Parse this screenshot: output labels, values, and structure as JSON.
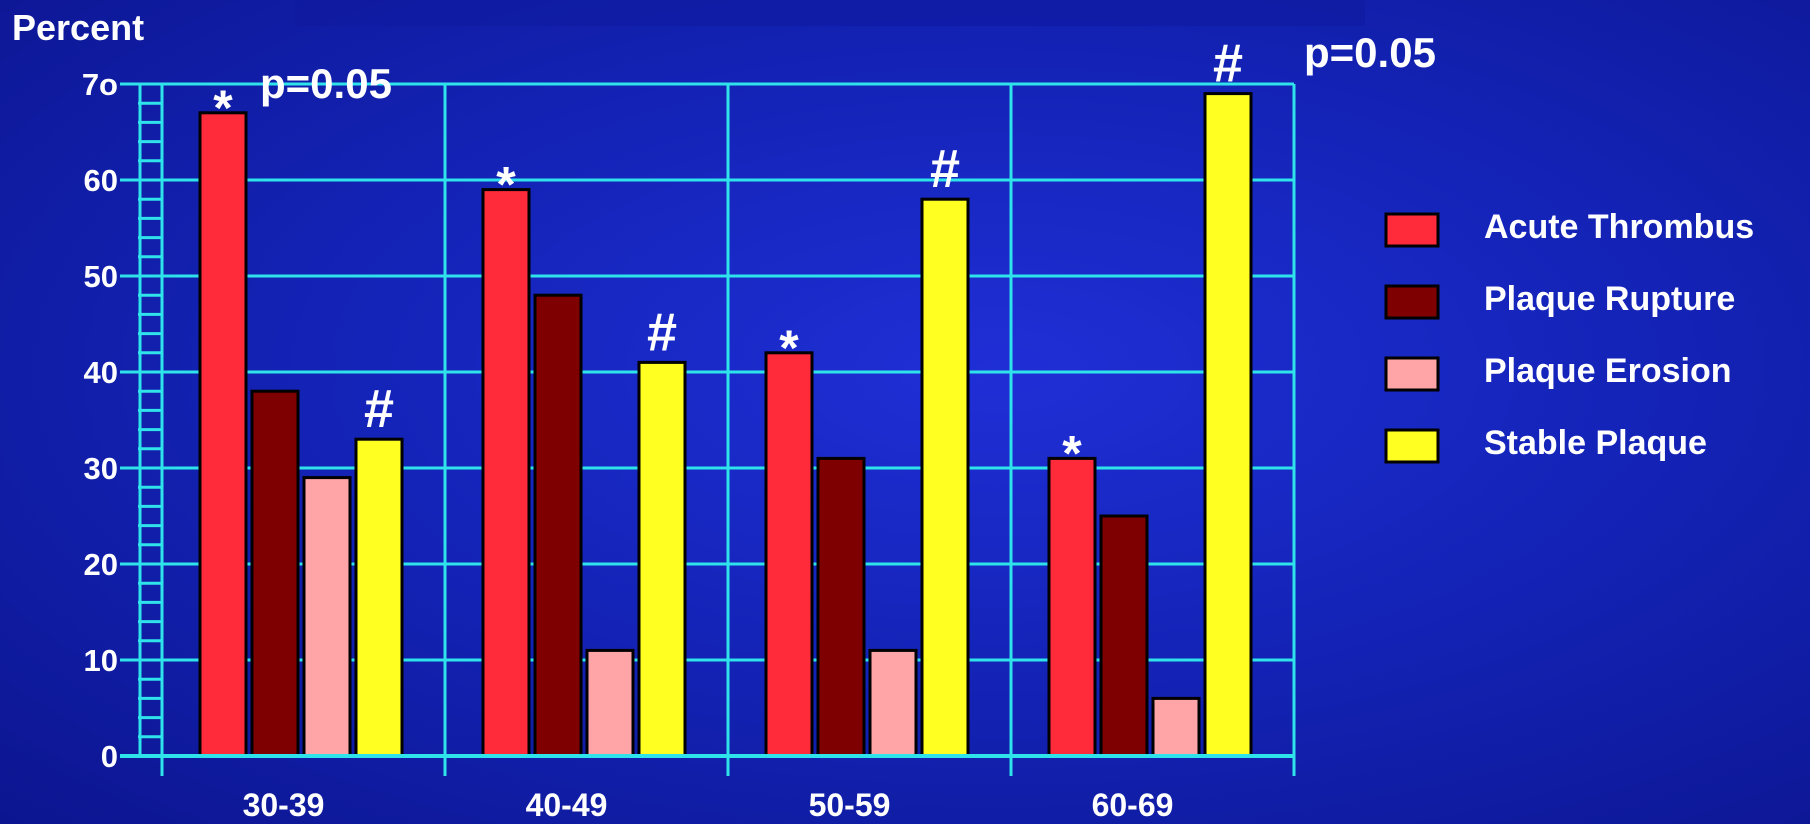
{
  "chart_data": {
    "type": "bar",
    "ylabel": "Percent",
    "y_tick_labels": [
      "0",
      "10",
      "20",
      "30",
      "40",
      "50",
      "60",
      "7o"
    ],
    "y_tick_values": [
      0,
      10,
      20,
      30,
      40,
      50,
      60,
      70
    ],
    "ylim": [
      0,
      70
    ],
    "grid": true,
    "categories": [
      "30-39",
      "40-49",
      "50-59",
      "60-69"
    ],
    "series": [
      {
        "name": "Acute Thrombus",
        "color": "#ff2b3a",
        "values": [
          67,
          59,
          42,
          31
        ]
      },
      {
        "name": "Plaque Rupture",
        "color": "#7f0000",
        "values": [
          38,
          48,
          31,
          25
        ]
      },
      {
        "name": "Plaque Erosion",
        "color": "#ffa5a8",
        "values": [
          29,
          11,
          11,
          6
        ]
      },
      {
        "name": "Stable Plaque",
        "color": "#ffff22",
        "values": [
          33,
          41,
          58,
          69
        ]
      }
    ],
    "legend_position": "right",
    "annotations": {
      "star": "*",
      "hash": "#",
      "p_value_left": "p=0.05",
      "p_value_right": "p=0.05"
    }
  }
}
